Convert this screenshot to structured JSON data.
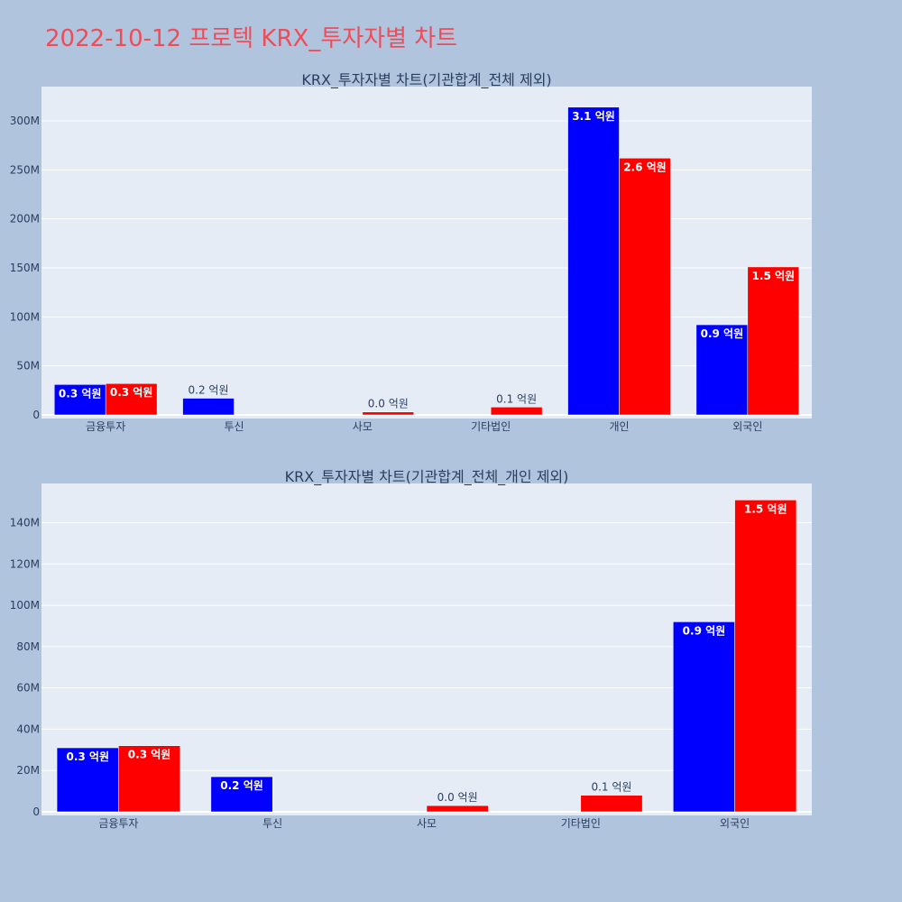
{
  "page_title": "2022-10-12 프로텍 KRX_투자자별 차트",
  "colors": {
    "background": "#b0c4de",
    "plot_bg": "#e5ecf6",
    "series_a": "#0000ff",
    "series_b": "#ff0000",
    "title": "#ef4c5a"
  },
  "chart_data": [
    {
      "type": "bar",
      "title": "KRX_투자자별 차트(기관합계_전체 제외)",
      "categories": [
        "금융투자",
        "투신",
        "사모",
        "기타법인",
        "개인",
        "외국인"
      ],
      "ylim": [
        0,
        335000000
      ],
      "yticks": [
        0,
        50000000,
        100000000,
        150000000,
        200000000,
        250000000,
        300000000
      ],
      "ytick_labels": [
        "0",
        "50M",
        "100M",
        "150M",
        "200M",
        "250M",
        "300M"
      ],
      "grid": true,
      "series": [
        {
          "color": "#0000ff",
          "values": [
            31000000,
            17000000,
            0,
            0,
            314000000,
            92000000
          ],
          "labels": [
            "0.3 억원",
            "0.2 억원",
            "",
            "",
            "3.1 억원",
            "0.9 억원"
          ]
        },
        {
          "color": "#ff0000",
          "values": [
            32000000,
            0,
            3000000,
            8000000,
            262000000,
            151000000
          ],
          "labels": [
            "0.3 억원",
            "",
            "0.0 억원",
            "0.1 억원",
            "2.6 억원",
            "1.5 억원"
          ]
        }
      ]
    },
    {
      "type": "bar",
      "title": "KRX_투자자별 차트(기관합계_전체_개인 제외)",
      "categories": [
        "금융투자",
        "투신",
        "사모",
        "기타법인",
        "외국인"
      ],
      "ylim": [
        0,
        159000000
      ],
      "yticks": [
        0,
        20000000,
        40000000,
        60000000,
        80000000,
        100000000,
        120000000,
        140000000
      ],
      "ytick_labels": [
        "0",
        "20M",
        "40M",
        "60M",
        "80M",
        "100M",
        "120M",
        "140M"
      ],
      "grid": true,
      "series": [
        {
          "color": "#0000ff",
          "values": [
            31000000,
            17000000,
            0,
            0,
            92000000
          ],
          "labels": [
            "0.3 억원",
            "0.2 억원",
            "",
            "",
            "0.9 억원"
          ]
        },
        {
          "color": "#ff0000",
          "values": [
            32000000,
            0,
            3000000,
            8000000,
            151000000
          ],
          "labels": [
            "0.3 억원",
            "",
            "0.0 억원",
            "0.1 억원",
            "1.5 억원"
          ]
        }
      ]
    }
  ]
}
